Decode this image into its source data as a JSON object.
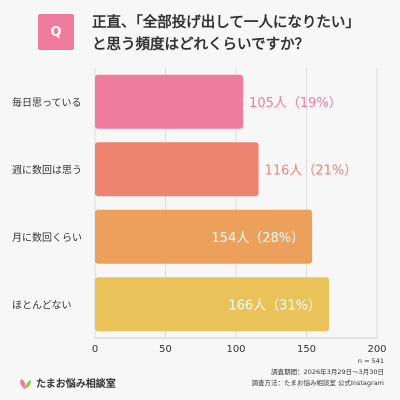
{
  "question": {
    "badge": "Q",
    "title_line1": "正直、「全部投げ出して一人になりたい」",
    "title_line2": "と思う頻度はどれくらいですか？"
  },
  "chart_data": {
    "type": "bar",
    "orientation": "horizontal",
    "categories": [
      "毎日思っている",
      "週に数回は思う",
      "月に数回くらい",
      "ほとんどない"
    ],
    "values": [
      105,
      116,
      154,
      166
    ],
    "data_labels": [
      "105人（19%）",
      "116人（21%）",
      "154人（28%）",
      "166人（31%）"
    ],
    "percentages": [
      19,
      21,
      28,
      31
    ],
    "colors": [
      "#ef7c9e",
      "#ee8470",
      "#eba05c",
      "#e9c35a"
    ],
    "label_colors": [
      "#ef7c9e",
      "#ee8470",
      "#ffffff",
      "#ffffff"
    ],
    "xlim": [
      0,
      200
    ],
    "xticks": [
      "0",
      "50",
      "100",
      "150",
      "200"
    ],
    "grid": true
  },
  "footer": {
    "logo_text": "たまお悩み相談室",
    "n": "n = 541",
    "period": "調査期間：2026年3月29日〜3月30日",
    "method": "調査方法：たまお悩み相談室 公式Instagram"
  }
}
